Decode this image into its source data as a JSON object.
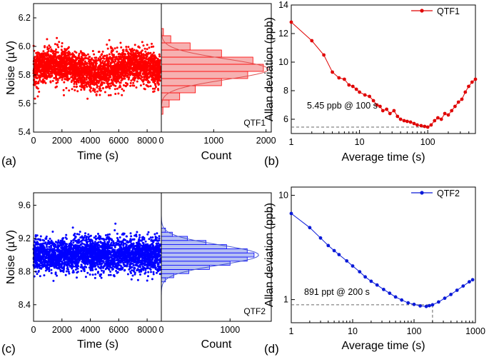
{
  "chart_data": [
    {
      "panel": "(a)",
      "type": "scatter",
      "xlabel": "Time (s)",
      "ylabel": "Noise (µV)",
      "xlim": [
        0,
        9000
      ],
      "ylim": [
        5.4,
        6.3
      ],
      "xticks": [
        "0",
        "2000",
        "4000",
        "6000",
        "8000"
      ],
      "yticks": [
        "5.4",
        "5.6",
        "5.8",
        "6.0",
        "6.2"
      ],
      "series": [
        {
          "name": "QTF1",
          "color": "#ff0000",
          "mean": 5.84,
          "std": 0.06,
          "points": 3000
        }
      ],
      "histogram": {
        "xlabel": "Count",
        "xlim": [
          0,
          2100
        ],
        "xticks": [
          "0",
          "1000",
          "2000"
        ],
        "bin_centers": [
          5.55,
          5.6,
          5.65,
          5.7,
          5.75,
          5.8,
          5.85,
          5.9,
          5.95,
          6.0,
          6.05,
          6.1
        ],
        "counts": [
          30,
          150,
          350,
          650,
          1150,
          1650,
          1950,
          1750,
          1150,
          550,
          180,
          40
        ],
        "fill": "#f4a3a3",
        "label": "QTF1"
      }
    },
    {
      "panel": "(b)",
      "type": "line",
      "xscale": "log",
      "xlabel": "Average time (s)",
      "ylabel": "Allan deviation (ppb)",
      "xlim": [
        1,
        500
      ],
      "ylim": [
        5,
        14
      ],
      "xticks": [
        "1",
        "10",
        "100"
      ],
      "yticks": [
        "6",
        "8",
        "10",
        "12",
        "14"
      ],
      "series": [
        {
          "name": "QTF1",
          "color": "#e00000",
          "x": [
            1,
            2,
            3,
            4,
            5,
            6,
            7,
            8,
            9,
            10,
            12,
            14,
            16,
            18,
            20,
            22,
            25,
            28,
            32,
            36,
            40,
            45,
            50,
            56,
            63,
            70,
            80,
            90,
            100,
            112,
            126,
            141,
            158,
            178,
            200,
            224,
            251,
            282,
            316,
            355,
            398,
            447,
            500
          ],
          "y": [
            12.8,
            11.5,
            10.5,
            9.3,
            8.9,
            8.8,
            8.4,
            8.3,
            8.1,
            7.9,
            7.7,
            7.6,
            7.3,
            7.0,
            6.9,
            6.6,
            6.7,
            6.4,
            6.6,
            6.2,
            6.0,
            5.9,
            5.85,
            5.8,
            5.7,
            5.6,
            5.55,
            5.5,
            5.45,
            5.6,
            5.9,
            6.1,
            6.0,
            6.4,
            6.3,
            6.6,
            6.9,
            7.2,
            7.4,
            7.9,
            8.3,
            8.6,
            8.8
          ]
        }
      ],
      "legend": "top-right",
      "annotation": "5.45 ppb @ 100 s",
      "annotation_point": [
        100,
        5.45
      ]
    },
    {
      "panel": "(c)",
      "type": "scatter",
      "xlabel": "Time (s)",
      "ylabel": "Noise (µV)",
      "xlim": [
        0,
        9000
      ],
      "ylim": [
        8.2,
        9.75
      ],
      "xticks": [
        "0",
        "2000",
        "4000",
        "6000",
        "8000"
      ],
      "yticks": [
        "8.4",
        "8.8",
        "9.2",
        "9.6"
      ],
      "series": [
        {
          "name": "QTF2",
          "color": "#0000ff",
          "mean": 9.0,
          "std": 0.1,
          "points": 3000
        }
      ],
      "histogram": {
        "xlabel": "Count",
        "xlim": [
          0,
          1600
        ],
        "xticks": [
          "0",
          "1000"
        ],
        "bin_centers": [
          8.7,
          8.75,
          8.8,
          8.85,
          8.9,
          8.95,
          9.0,
          9.05,
          9.1,
          9.15,
          9.2,
          9.25,
          9.3
        ],
        "counts": [
          60,
          180,
          400,
          700,
          1000,
          1250,
          1350,
          1250,
          950,
          650,
          380,
          160,
          60
        ],
        "fill": "#a8b4f0",
        "label": "QTF2"
      }
    },
    {
      "panel": "(d)",
      "type": "line",
      "xscale": "log",
      "yscale": "log",
      "xlabel": "Average time (s)",
      "ylabel": "Allan deviation (ppb)",
      "xlim": [
        1,
        1000
      ],
      "ylim": [
        0.6,
        12
      ],
      "xticks": [
        "1",
        "10",
        "100",
        "1000"
      ],
      "yticks": [
        "1",
        "10"
      ],
      "series": [
        {
          "name": "QTF2",
          "color": "#0a1ad8",
          "x": [
            1,
            2,
            3,
            4,
            5,
            6,
            8,
            10,
            13,
            16,
            20,
            25,
            32,
            40,
            50,
            63,
            80,
            100,
            126,
            158,
            178,
            200,
            251,
            316,
            398,
            501,
            631,
            794,
            900
          ],
          "y": [
            6.7,
            4.9,
            3.9,
            3.3,
            2.95,
            2.7,
            2.35,
            2.1,
            1.85,
            1.65,
            1.5,
            1.38,
            1.25,
            1.15,
            1.06,
            0.99,
            0.93,
            0.9,
            0.87,
            0.86,
            0.875,
            0.891,
            0.95,
            1.03,
            1.12,
            1.23,
            1.35,
            1.48,
            1.55
          ]
        }
      ],
      "legend": "top-right",
      "annotation": "891 ppt @ 200 s",
      "annotation_point": [
        200,
        0.891
      ]
    }
  ]
}
